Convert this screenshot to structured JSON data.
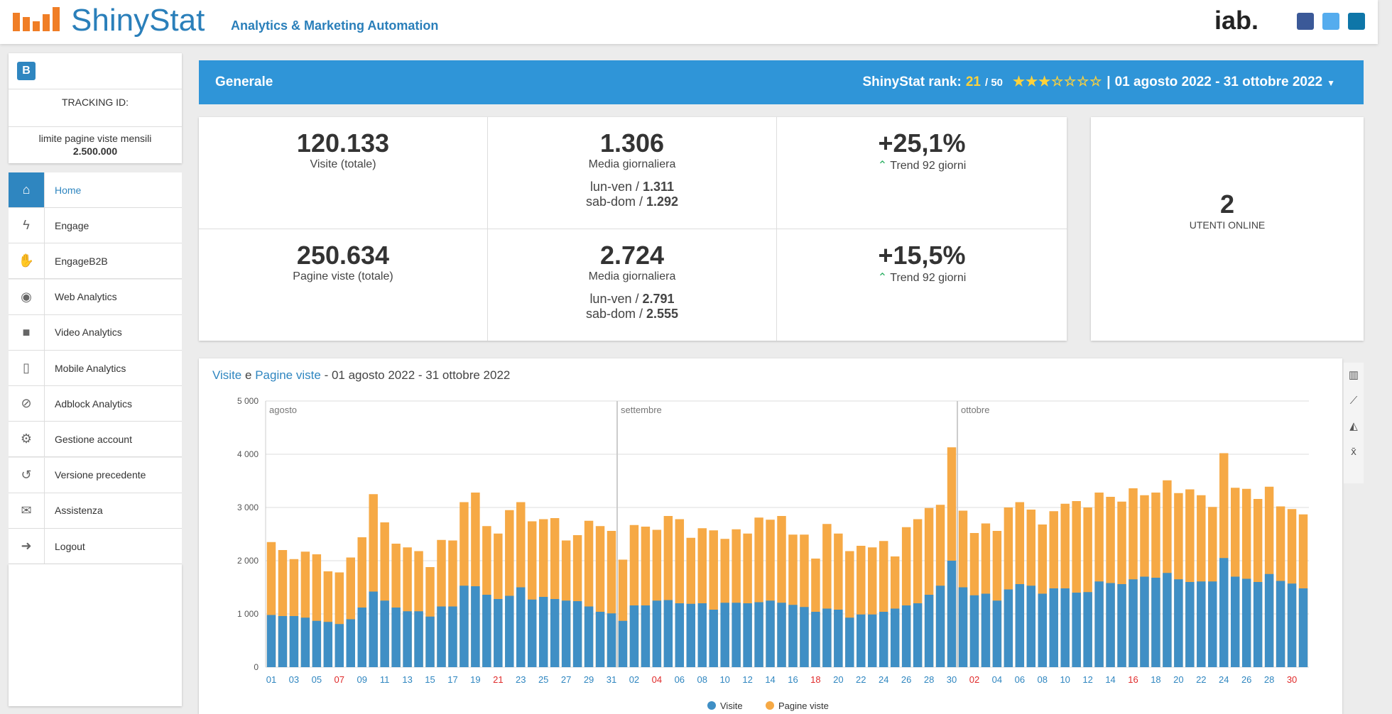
{
  "header": {
    "logo": "ShinyStat",
    "tagline": "Analytics & Marketing Automation",
    "partner": "iab."
  },
  "sidebar": {
    "badge": "B",
    "tracking_label": "TRACKING ID:",
    "limit_label": "limite pagine viste mensili",
    "limit_value": "2.500.000",
    "menu": [
      "Home",
      "Engage",
      "EngageB2B",
      "Web Analytics",
      "Video Analytics",
      "Mobile Analytics",
      "Adblock Analytics",
      "Gestione account",
      "Versione precedente",
      "Assistenza",
      "Logout"
    ]
  },
  "topbar": {
    "section": "Generale",
    "rank_label": "ShinyStat rank:",
    "rank": "21",
    "rank_max": "/ 50",
    "separator": "|",
    "period": "01 agosto 2022 - 31 ottobre 2022"
  },
  "summary": {
    "visits": {
      "total": "120.133",
      "total_label": "Visite (totale)",
      "avg": "1.306",
      "avg_label": "Media giornaliera",
      "weekday_label": "lun-ven /",
      "weekday": "1.311",
      "weekend_label": "sab-dom /",
      "weekend": "1.292",
      "trend": "+25,1%",
      "trend_label": "Trend 92 giorni"
    },
    "pages": {
      "total": "250.634",
      "total_label": "Pagine viste (totale)",
      "avg": "2.724",
      "avg_label": "Media giornaliera",
      "weekday_label": "lun-ven /",
      "weekday": "2.791",
      "weekend_label": "sab-dom /",
      "weekend": "2.555",
      "trend": "+15,5%",
      "trend_label": "Trend 92 giorni"
    },
    "online": "2",
    "online_label": "UTENTI ONLINE"
  },
  "chart_data": {
    "type": "bar",
    "title": {
      "link1": "Visite",
      "joiner": "e",
      "link2": "Pagine viste",
      "period": "- 01 agosto 2022 - 31 ottobre 2022"
    },
    "categories": [
      "01",
      null,
      "03",
      null,
      "05",
      null,
      "07",
      null,
      "09",
      null,
      "11",
      null,
      "13",
      null,
      "15",
      null,
      "17",
      null,
      "19",
      null,
      "21",
      null,
      "23",
      null,
      "25",
      null,
      "27",
      null,
      "29",
      null,
      "31",
      null,
      "02",
      null,
      "04",
      null,
      "06",
      null,
      "08",
      null,
      "10",
      null,
      "12",
      null,
      "14",
      null,
      "16",
      null,
      "18",
      null,
      "20",
      null,
      "22",
      null,
      "24",
      null,
      "26",
      null,
      "28",
      null,
      "30",
      null,
      "02",
      null,
      "04",
      null,
      "06",
      null,
      "08",
      null,
      "10",
      null,
      "12",
      null,
      "14",
      null,
      "16",
      null,
      "18",
      null,
      "20",
      null,
      "22",
      null,
      "24",
      null,
      "26",
      null,
      "28",
      null,
      "30",
      null
    ],
    "x_label_colors": [
      "#2f86c0",
      null,
      "#2f86c0",
      null,
      "#2f86c0",
      null,
      "#e02a2a",
      null,
      "#2f86c0",
      null,
      "#2f86c0",
      null,
      "#2f86c0",
      null,
      "#2f86c0",
      null,
      "#2f86c0",
      null,
      "#2f86c0",
      null,
      "#e02a2a",
      null,
      "#2f86c0",
      null,
      "#2f86c0",
      null,
      "#2f86c0",
      null,
      "#2f86c0",
      null,
      "#2f86c0",
      null,
      "#2f86c0",
      null,
      "#e02a2a",
      null,
      "#2f86c0",
      null,
      "#2f86c0",
      null,
      "#2f86c0",
      null,
      "#2f86c0",
      null,
      "#2f86c0",
      null,
      "#2f86c0",
      null,
      "#e02a2a",
      null,
      "#2f86c0",
      null,
      "#2f86c0",
      null,
      "#2f86c0",
      null,
      "#2f86c0",
      null,
      "#2f86c0",
      null,
      "#2f86c0",
      null,
      "#e02a2a",
      null,
      "#2f86c0",
      null,
      "#2f86c0",
      null,
      "#2f86c0",
      null,
      "#2f86c0",
      null,
      "#2f86c0",
      null,
      "#2f86c0",
      null,
      "#e02a2a",
      null,
      "#2f86c0",
      null,
      "#2f86c0",
      null,
      "#2f86c0",
      null,
      "#2f86c0",
      null,
      "#2f86c0",
      null,
      "#2f86c0",
      null,
      "#e02a2a",
      null
    ],
    "annotations": [
      {
        "text": "agosto",
        "at": 0
      },
      {
        "text": "settembre",
        "at": 31
      },
      {
        "text": "ottobre",
        "at": 61
      }
    ],
    "series": [
      {
        "name": "Pagine viste",
        "color": "#f6a945",
        "values": [
          2350,
          2200,
          2030,
          2170,
          2120,
          1800,
          1780,
          2060,
          2440,
          3250,
          2720,
          2320,
          2250,
          2180,
          1880,
          2390,
          2380,
          3100,
          3280,
          2650,
          2510,
          2950,
          3100,
          2740,
          2780,
          2800,
          2380,
          2480,
          2750,
          2650,
          2560,
          2020,
          2670,
          2640,
          2580,
          2840,
          2780,
          2430,
          2610,
          2570,
          2410,
          2590,
          2510,
          2810,
          2770,
          2840,
          2490,
          2490,
          2040,
          2690,
          2510,
          2180,
          2280,
          2250,
          2370,
          2080,
          2630,
          2780,
          2990,
          3050,
          4130,
          2940,
          2520,
          2700,
          2560,
          3000,
          3100,
          2960,
          2680,
          2930,
          3070,
          3120,
          3000,
          3280,
          3200,
          3110,
          3360,
          3230,
          3280,
          3510,
          3270,
          3340,
          3230,
          3010,
          4020,
          3370,
          3350,
          3160,
          3390,
          3020,
          2970,
          2870
        ]
      },
      {
        "name": "Visite",
        "color": "#3f8fc5",
        "values": [
          980,
          960,
          960,
          930,
          870,
          850,
          810,
          900,
          1120,
          1420,
          1250,
          1120,
          1050,
          1050,
          950,
          1140,
          1140,
          1530,
          1520,
          1360,
          1280,
          1340,
          1500,
          1270,
          1320,
          1280,
          1250,
          1240,
          1140,
          1040,
          1010,
          870,
          1160,
          1160,
          1250,
          1260,
          1200,
          1190,
          1200,
          1080,
          1210,
          1210,
          1200,
          1220,
          1250,
          1210,
          1170,
          1130,
          1040,
          1100,
          1080,
          930,
          990,
          990,
          1040,
          1100,
          1160,
          1200,
          1360,
          1530,
          2000,
          1500,
          1350,
          1380,
          1250,
          1460,
          1560,
          1530,
          1380,
          1480,
          1480,
          1400,
          1410,
          1610,
          1580,
          1560,
          1650,
          1700,
          1680,
          1770,
          1650,
          1600,
          1610,
          1610,
          2050,
          1700,
          1660,
          1600,
          1750,
          1620,
          1570,
          1480
        ]
      }
    ],
    "legend_order": [
      1,
      0
    ],
    "ylim": [
      0,
      5000
    ],
    "yticks": [
      0,
      {
        "value": 1000,
        "label": "1 000"
      },
      {
        "value": 2000,
        "label": "2 000"
      },
      {
        "value": 3000,
        "label": "3 000"
      },
      {
        "value": 4000,
        "label": "4 000"
      },
      {
        "value": 5000,
        "label": "5 000"
      }
    ],
    "grid": true
  }
}
